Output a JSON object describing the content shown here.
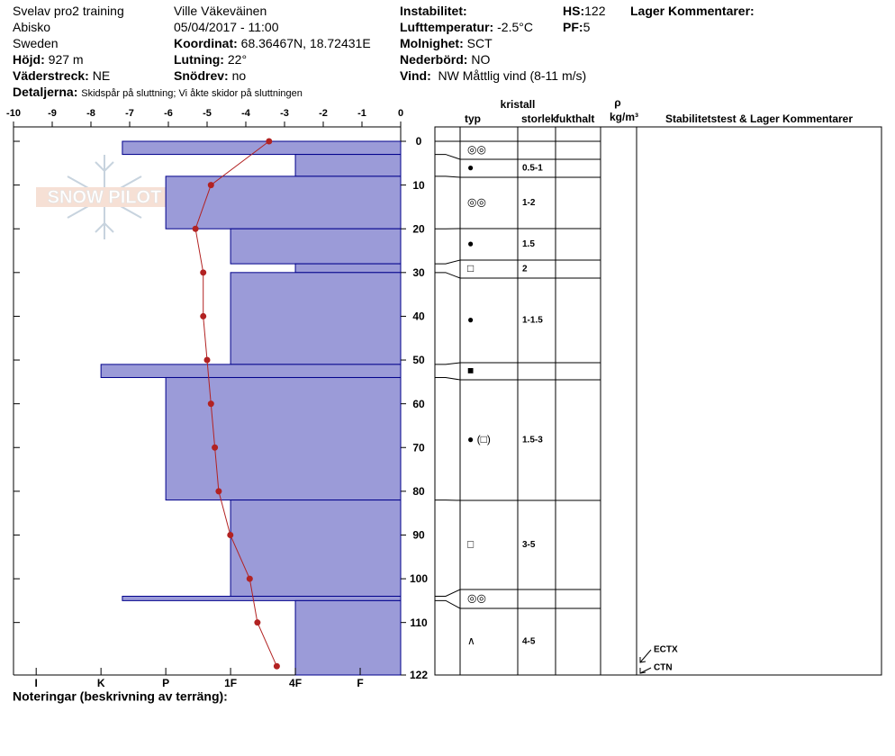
{
  "header": {
    "col1": {
      "line1": "Svelav pro2 training",
      "line2": "Abisko",
      "line3": "Sweden",
      "hojd_label": "Höjd:",
      "hojd": "927 m",
      "vaderstreck_label": "Väderstreck:",
      "vaderstreck": "NE"
    },
    "col2": {
      "line1": "Ville Väkeväinen",
      "line2": "05/04/2017 - 11:00",
      "koordinat_label": "Koordinat:",
      "koordinat": "68.36467N, 18.72431E",
      "lutning_label": "Lutning:",
      "lutning": "22°",
      "snodrev_label": "Snödrev:",
      "snodrev": "no"
    },
    "col3": {
      "instabilitet_label": "Instabilitet:",
      "lufttemp_label": "Lufttemperatur:",
      "lufttemp": "-2.5°C",
      "molnighet_label": "Molnighet:",
      "molnighet": "SCT",
      "nederbord_label": "Nederbörd:",
      "nederbord": "NO",
      "vind_label": "Vind:",
      "vind": "NW Måttlig vind (8-11 m/s)"
    },
    "col4": {
      "hs_label": "HS:",
      "hs": "122",
      "pf_label": "PF:",
      "pf": "5"
    },
    "lager_label": "Lager Kommentarer:",
    "detaljerna_label": "Detaljerna:",
    "detaljerna": "Skidspår på sluttning;  Vi åkte skidor på sluttningen"
  },
  "chart_data": {
    "type": "snow-profile",
    "logo": "SNOW PILOT",
    "xlim": [
      -10,
      0
    ],
    "xticks": [
      -10,
      -9,
      -8,
      -7,
      -6,
      -5,
      -4,
      -3,
      -2,
      -1,
      0
    ],
    "ylim": [
      0,
      122
    ],
    "yticks": [
      0,
      10,
      20,
      30,
      40,
      50,
      60,
      70,
      80,
      90,
      100,
      110,
      122
    ],
    "hardness_axis": {
      "xlim": [
        0.375,
        6.35
      ],
      "xticks": [
        {
          "value": 6,
          "label": "I"
        },
        {
          "value": 5,
          "label": "K"
        },
        {
          "value": 4,
          "label": "P"
        },
        {
          "value": 3,
          "label": "1F"
        },
        {
          "value": 2,
          "label": "4F"
        },
        {
          "value": 1,
          "label": "F"
        }
      ]
    },
    "layers": {
      "color": "#9b9bd8",
      "top": [
        0,
        3,
        8,
        20,
        28,
        30,
        51,
        54,
        82,
        104,
        105
      ],
      "bottom": [
        3,
        8,
        20,
        28,
        30,
        51,
        54,
        82,
        104,
        105,
        122
      ],
      "hardness": [
        4.67,
        2,
        4,
        3,
        2,
        3,
        5,
        4,
        3,
        4.67,
        2
      ],
      "crystal_type": [
        "◎◎",
        "●",
        "◎◎",
        "●",
        "□",
        "●",
        "■",
        "●  (□)",
        "□",
        "◎◎",
        "∧"
      ],
      "crystal_size": [
        null,
        "0.5-1",
        "1-2",
        "1.5",
        "2",
        "1-1.5",
        null,
        "1.5-3",
        "3-5",
        null,
        "4-5"
      ]
    },
    "temperature": {
      "color": "#b22222",
      "depth": [
        0,
        10,
        20,
        30,
        40,
        50,
        60,
        70,
        80,
        90,
        100,
        110,
        120
      ],
      "values": [
        -3.4,
        -4.9,
        -5.3,
        -5.1,
        -5.1,
        -5.0,
        -4.9,
        -4.8,
        -4.7,
        -4.4,
        -3.9,
        -3.7,
        -3.2
      ]
    },
    "columns": {
      "kristall": "kristall",
      "typ": "typ",
      "storlek": "storlek",
      "fukthalt": "fukthalt",
      "rho": "ρ",
      "density_unit": "kg/m³",
      "comments": "Stabilitetstest & Lager Kommentarer"
    },
    "stability_tests": [
      "ECTX",
      "CTN"
    ],
    "notes_label": "Noteringar (beskrivning av terräng):"
  }
}
